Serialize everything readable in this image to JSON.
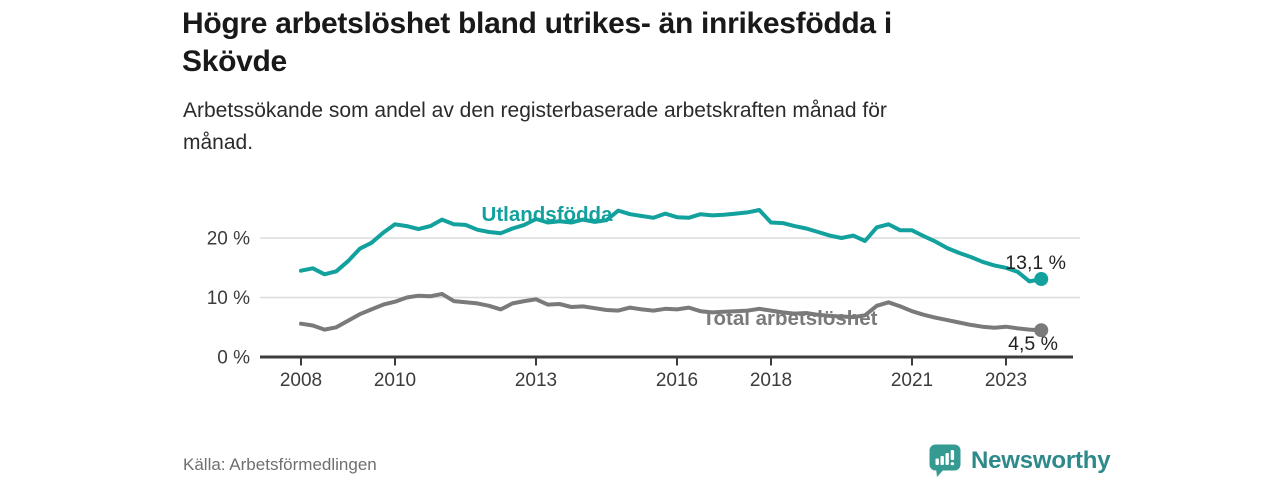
{
  "chart_data": {
    "type": "line",
    "title": "Högre arbetslöshet bland utrikes- än inrikesfödda i\nSkövde",
    "subtitle": "Arbetssökande som andel av den registerbaserade arbetskraften månad för\nmånad.",
    "source": "Källa: Arbetsförmedlingen",
    "unit": "%",
    "grid": "horizontal",
    "legend_position": "inline-labels",
    "x_range": [
      2007.8,
      2024.3
    ],
    "ylim": [
      0,
      28
    ],
    "x_ticks": [
      2008,
      2010,
      2013,
      2016,
      2018,
      2021,
      2023
    ],
    "y_ticks": [
      {
        "value": 0,
        "label": "0 %"
      },
      {
        "value": 10,
        "label": "10 %"
      },
      {
        "value": 20,
        "label": "20 %"
      }
    ],
    "series": [
      {
        "name": "Utlandsfödda",
        "color": "#12a19d",
        "end_label": "13,1 %",
        "end_value": 13.1,
        "x": [
          2008.0,
          2008.25,
          2008.5,
          2008.75,
          2009.0,
          2009.25,
          2009.5,
          2009.75,
          2010.0,
          2010.25,
          2010.5,
          2010.75,
          2011.0,
          2011.25,
          2011.5,
          2011.75,
          2012.0,
          2012.25,
          2012.5,
          2012.75,
          2013.0,
          2013.25,
          2013.5,
          2013.75,
          2014.0,
          2014.25,
          2014.5,
          2014.75,
          2015.0,
          2015.25,
          2015.5,
          2015.75,
          2016.0,
          2016.25,
          2016.5,
          2016.75,
          2017.0,
          2017.25,
          2017.5,
          2017.75,
          2018.0,
          2018.25,
          2018.5,
          2018.75,
          2019.0,
          2019.25,
          2019.5,
          2019.75,
          2020.0,
          2020.25,
          2020.5,
          2020.75,
          2021.0,
          2021.25,
          2021.5,
          2021.75,
          2022.0,
          2022.25,
          2022.5,
          2022.75,
          2023.0,
          2023.25,
          2023.5,
          2023.75
        ],
        "values": [
          14.5,
          14.9,
          13.9,
          14.4,
          16.1,
          18.2,
          19.2,
          20.9,
          22.3,
          22.0,
          21.5,
          22.0,
          23.1,
          22.3,
          22.2,
          21.4,
          21.0,
          20.8,
          21.6,
          22.2,
          23.2,
          22.6,
          22.8,
          22.6,
          23.1,
          22.7,
          23.0,
          24.6,
          24.0,
          23.7,
          23.4,
          24.1,
          23.5,
          23.4,
          24.0,
          23.8,
          23.9,
          24.1,
          24.3,
          24.7,
          22.6,
          22.5,
          22.0,
          21.6,
          21.0,
          20.4,
          20.0,
          20.4,
          19.5,
          21.8,
          22.3,
          21.3,
          21.3,
          20.3,
          19.4,
          18.3,
          17.5,
          16.8,
          16.0,
          15.4,
          15.0,
          14.3,
          12.7,
          13.1
        ]
      },
      {
        "name": "Total arbetslöshet",
        "color": "#7a7a7a",
        "end_label": "4,5 %",
        "end_value": 4.5,
        "x": [
          2008.0,
          2008.25,
          2008.5,
          2008.75,
          2009.0,
          2009.25,
          2009.5,
          2009.75,
          2010.0,
          2010.25,
          2010.5,
          2010.75,
          2011.0,
          2011.25,
          2011.5,
          2011.75,
          2012.0,
          2012.25,
          2012.5,
          2012.75,
          2013.0,
          2013.25,
          2013.5,
          2013.75,
          2014.0,
          2014.25,
          2014.5,
          2014.75,
          2015.0,
          2015.25,
          2015.5,
          2015.75,
          2016.0,
          2016.25,
          2016.5,
          2016.75,
          2017.0,
          2017.25,
          2017.5,
          2017.75,
          2018.0,
          2018.25,
          2018.5,
          2018.75,
          2019.0,
          2019.25,
          2019.5,
          2019.75,
          2020.0,
          2020.25,
          2020.5,
          2020.75,
          2021.0,
          2021.25,
          2021.5,
          2021.75,
          2022.0,
          2022.25,
          2022.5,
          2022.75,
          2023.0,
          2023.25,
          2023.5,
          2023.75
        ],
        "values": [
          5.6,
          5.3,
          4.6,
          5.0,
          6.1,
          7.2,
          8.0,
          8.8,
          9.3,
          10.0,
          10.3,
          10.2,
          10.6,
          9.4,
          9.2,
          9.0,
          8.6,
          8.0,
          9.0,
          9.4,
          9.7,
          8.8,
          8.9,
          8.4,
          8.5,
          8.2,
          7.9,
          7.8,
          8.3,
          8.0,
          7.8,
          8.1,
          8.0,
          8.3,
          7.7,
          7.5,
          7.6,
          7.7,
          7.8,
          8.1,
          7.8,
          7.5,
          7.3,
          7.4,
          7.1,
          6.9,
          6.8,
          6.7,
          7.0,
          8.6,
          9.2,
          8.5,
          7.7,
          7.1,
          6.6,
          6.2,
          5.8,
          5.4,
          5.1,
          4.9,
          5.1,
          4.8,
          4.6,
          4.5
        ]
      }
    ]
  },
  "footer": {
    "brand": "Newsworthy"
  },
  "colors": {
    "accent_teal": "#12a19d",
    "line_gray": "#7a7a7a",
    "axis": "#3d3d3d",
    "grid": "#dcdcdc",
    "tick_label": "#3c3c3c",
    "end_label": "#222222",
    "brand_teal": "#2e8a8a",
    "brand_icon_teal": "#359a92"
  }
}
